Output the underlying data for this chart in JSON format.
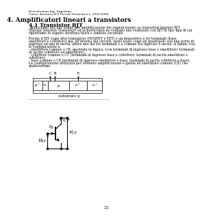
{
  "header_line1": "Esercitazioni Ing. Superiore",
  "header_line2": "Corso: Autonica B.S Piccoli Terracini a.a. 2005/2006",
  "title": "4. Amplificatori lineari a transistors",
  "subtitle": "4.1 Transistor BJT",
  "body_text": [
    "Analizziamo ora uno stadio per amplificazione dei segnali basato su transistori bipolari BJT",
    "(Bipolar Junction Transistor) ed in particolare ne vediamo uno realizzato con BJT di tipo npn di cui",
    "riportiamo di seguito struttura fisica e simbolo circuitale.",
    "",
    "Poiche il BJT come altri transistors (MOSFET e FET) e un dispositivo a tre terminali (base,",
    "emettitore e collettore) ma, all'interno dei circuiti, viene usato come un quadripolo con una porta di",
    "ingresso ed una di uscita; allora uno dei tre terminali e a comune fra ingresso e uscita: si hanno cosi",
    "le configurazioni a:",
    "- emettitore comune o CE, mostrata in figura, (con terminali di ingresso base e emettitore; terminali",
    "di uscita collettore ed emettitore),",
    "- collettore comune o CC (terminali di ingresso base e collettore; terminali di uscita emettitore e",
    "collettore),",
    "- base comune o CB (terminali di ingresso emettitore e base; terminali di uscita collettore e base).",
    "La configurazione utilizzata per ottenere amplificazione e quella ad emettitore comune (CE) che",
    "analizzeremo."
  ],
  "substrate_label": "substrato p",
  "page_number": "22",
  "background_color": "#ffffff",
  "text_color": "#000000",
  "gray_color": "#aaaaaa"
}
